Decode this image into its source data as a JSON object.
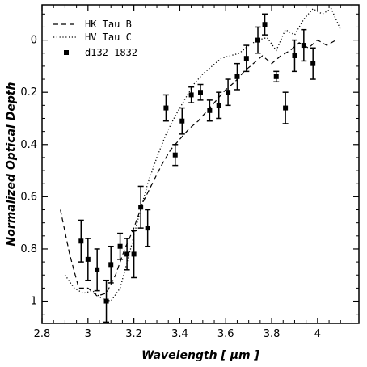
{
  "chart_data": {
    "type": "line",
    "xlabel": "Wavelength [ μm ]",
    "ylabel": "Normalized Optical Depth",
    "xlim": [
      2.8,
      4.18
    ],
    "ylim": [
      1.085,
      -0.135
    ],
    "y_axis_inverted": true,
    "x_ticks": [
      2.8,
      3.0,
      3.2,
      3.4,
      3.6,
      3.8,
      4.0
    ],
    "x_tick_labels": [
      "2.8",
      "3",
      "3.2",
      "3.4",
      "3.6",
      "3.8",
      "4"
    ],
    "y_ticks": [
      0,
      0.2,
      0.4,
      0.6,
      0.8,
      1.0
    ],
    "y_tick_labels": [
      "0",
      "0.2",
      "0.4",
      "0.6",
      "0.8",
      "1"
    ],
    "legend_placement": "top-left",
    "series": [
      {
        "name": "HK Tau B",
        "style": "dashed",
        "x": [
          2.88,
          2.92,
          2.96,
          3.0,
          3.04,
          3.08,
          3.12,
          3.16,
          3.2,
          3.24,
          3.28,
          3.32,
          3.36,
          3.4,
          3.44,
          3.48,
          3.52,
          3.56,
          3.6,
          3.64,
          3.68,
          3.72,
          3.76,
          3.8,
          3.84,
          3.88,
          3.92,
          3.96,
          4.0,
          4.04,
          4.08
        ],
        "y": [
          0.65,
          0.82,
          0.95,
          0.95,
          0.98,
          0.97,
          0.9,
          0.8,
          0.72,
          0.62,
          0.55,
          0.48,
          0.42,
          0.38,
          0.34,
          0.31,
          0.27,
          0.23,
          0.19,
          0.16,
          0.12,
          0.09,
          0.06,
          0.09,
          0.06,
          0.04,
          0.01,
          0.03,
          0.0,
          0.02,
          0.0
        ]
      },
      {
        "name": "HV Tau C",
        "style": "dotted",
        "x": [
          2.9,
          2.94,
          2.98,
          3.02,
          3.06,
          3.1,
          3.14,
          3.18,
          3.22,
          3.26,
          3.3,
          3.34,
          3.38,
          3.42,
          3.46,
          3.5,
          3.54,
          3.58,
          3.62,
          3.66,
          3.7,
          3.74,
          3.78,
          3.82,
          3.86,
          3.9,
          3.94,
          3.98,
          4.02,
          4.06,
          4.1
        ],
        "y": [
          0.9,
          0.95,
          0.97,
          0.96,
          0.99,
          1.0,
          0.95,
          0.82,
          0.68,
          0.55,
          0.45,
          0.36,
          0.29,
          0.23,
          0.17,
          0.13,
          0.1,
          0.07,
          0.06,
          0.05,
          0.02,
          0.0,
          -0.01,
          0.04,
          -0.04,
          -0.02,
          -0.08,
          -0.12,
          -0.1,
          -0.12,
          -0.04
        ]
      },
      {
        "name": "d132-1832",
        "style": "points",
        "x": [
          2.97,
          3.0,
          3.04,
          3.08,
          3.1,
          3.14,
          3.17,
          3.2,
          3.23,
          3.26,
          3.34,
          3.38,
          3.41,
          3.45,
          3.49,
          3.53,
          3.57,
          3.61,
          3.65,
          3.69,
          3.74,
          3.77,
          3.82,
          3.86,
          3.9,
          3.94,
          3.98
        ],
        "y": [
          0.77,
          0.84,
          0.88,
          1.0,
          0.86,
          0.79,
          0.82,
          0.82,
          0.64,
          0.72,
          0.26,
          0.44,
          0.31,
          0.21,
          0.2,
          0.27,
          0.25,
          0.2,
          0.14,
          0.07,
          0.0,
          -0.06,
          0.14,
          0.26,
          0.06,
          0.02,
          0.09
        ],
        "err": [
          0.08,
          0.08,
          0.08,
          0.08,
          0.07,
          0.05,
          0.06,
          0.09,
          0.08,
          0.07,
          0.05,
          0.04,
          0.05,
          0.03,
          0.03,
          0.04,
          0.05,
          0.05,
          0.05,
          0.05,
          0.05,
          0.04,
          0.02,
          0.06,
          0.06,
          0.06,
          0.06
        ]
      }
    ]
  }
}
